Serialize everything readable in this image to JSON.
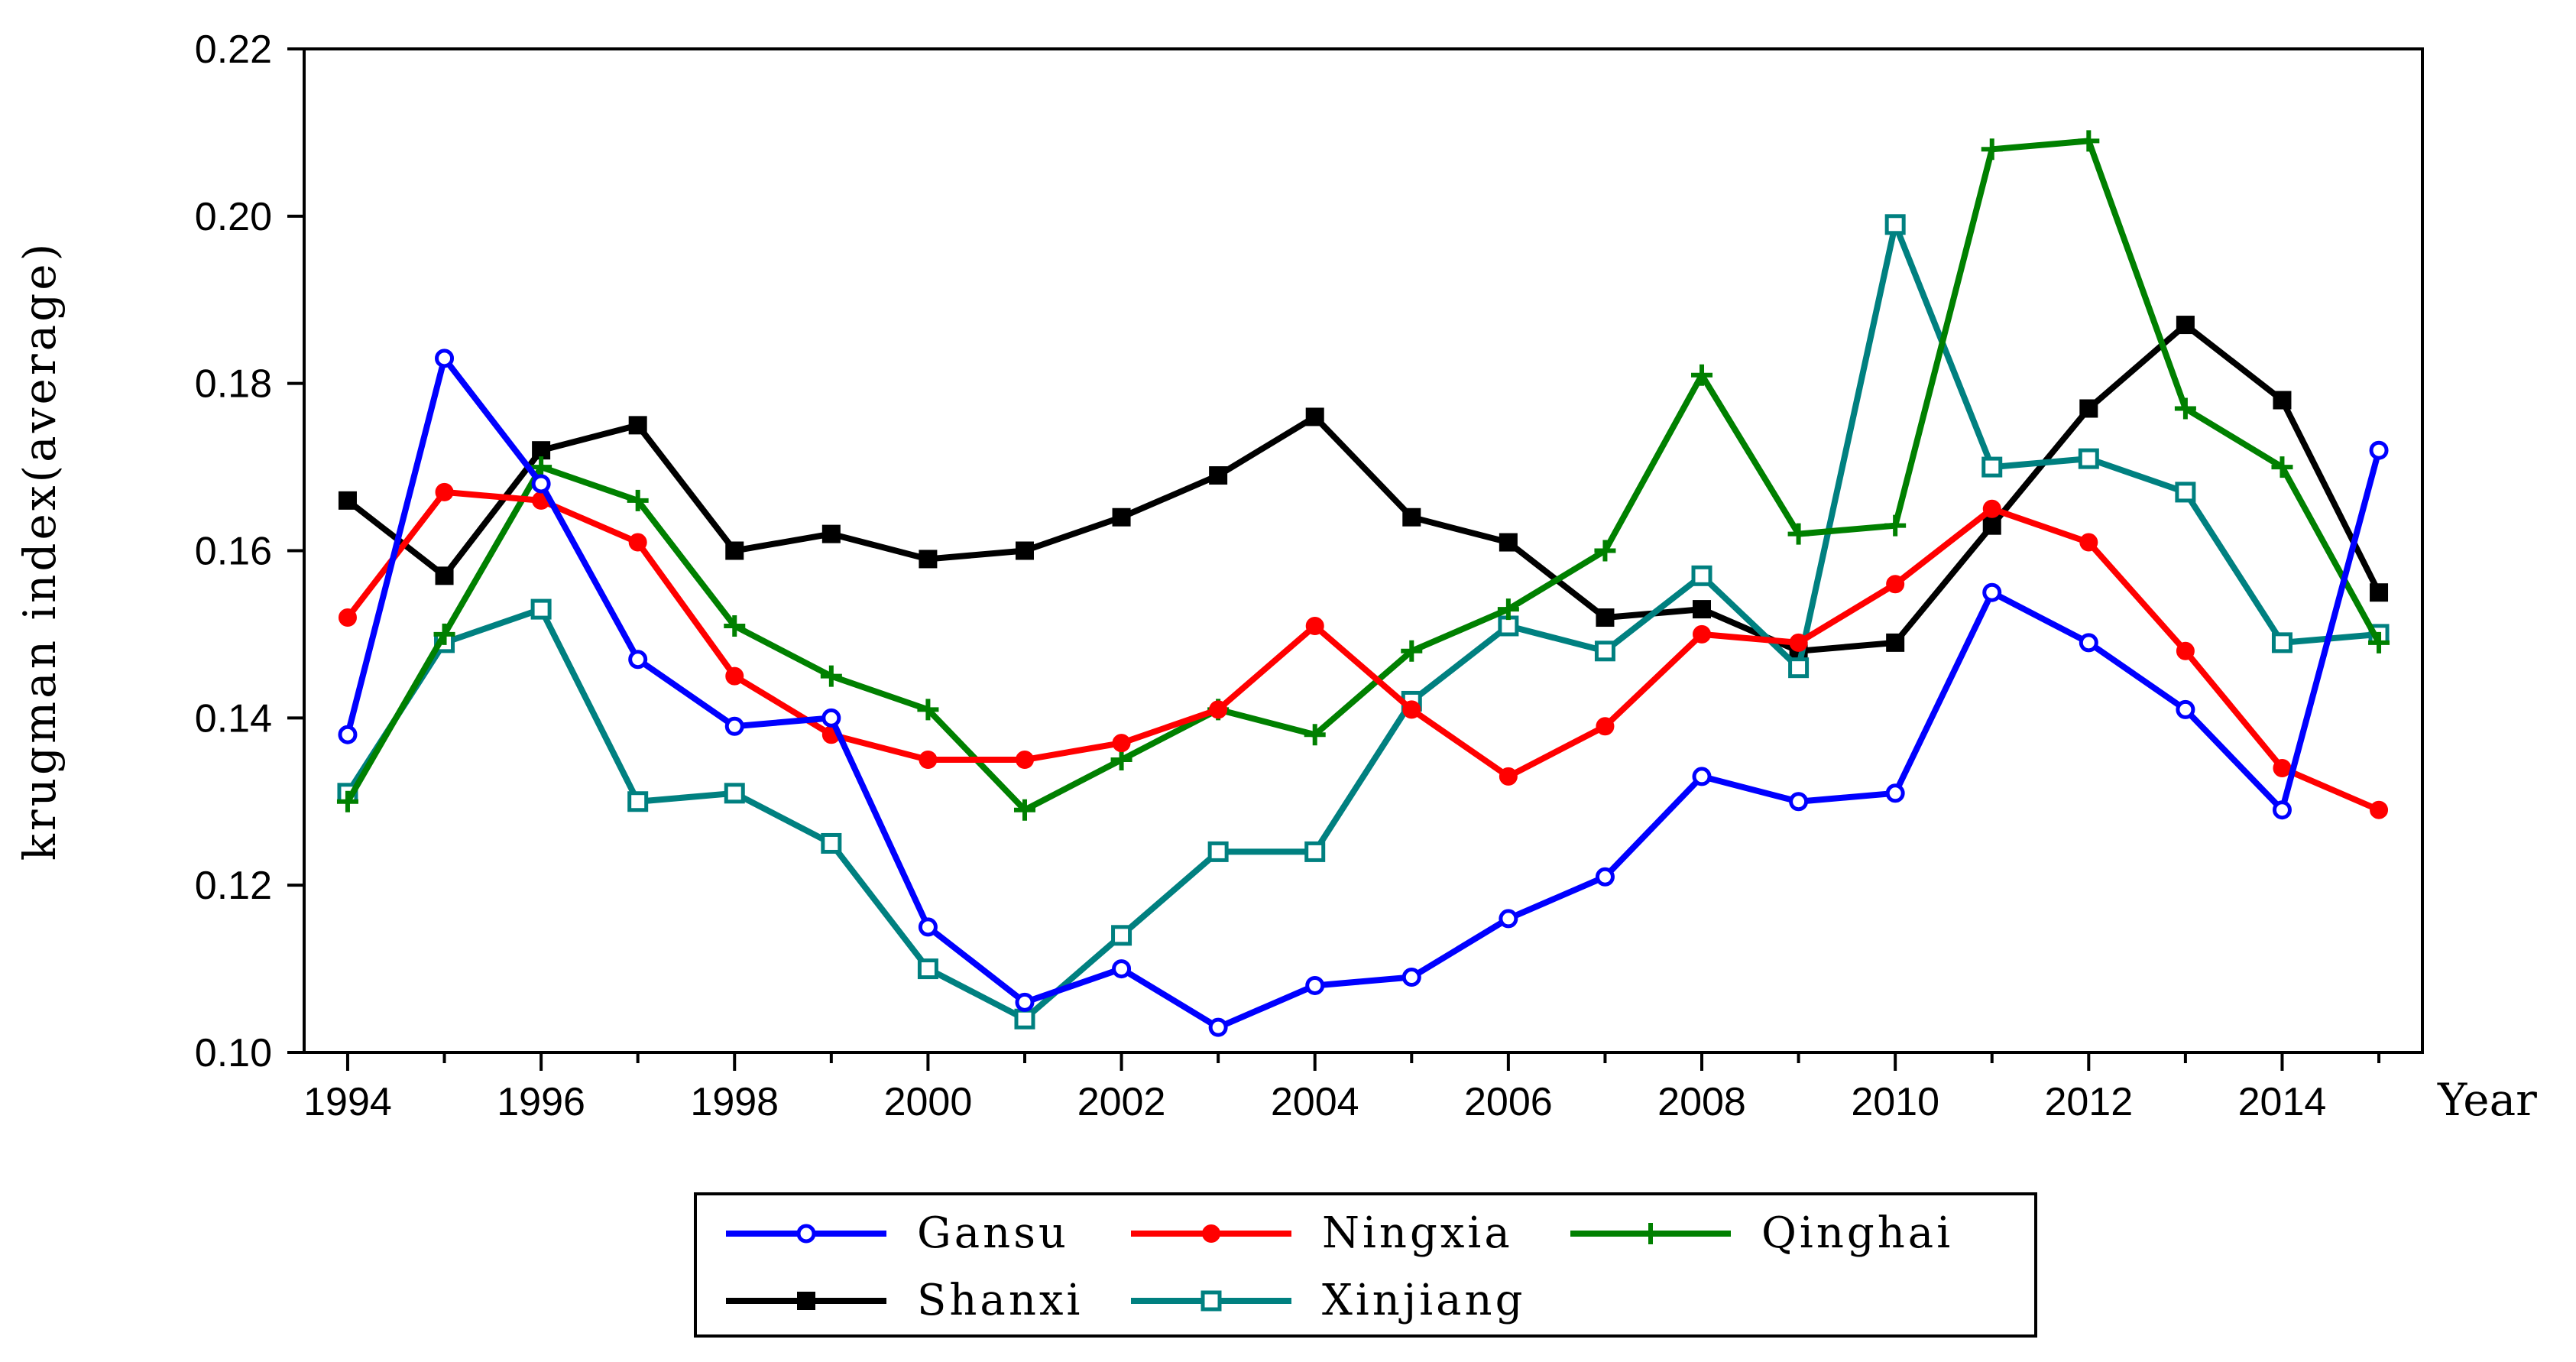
{
  "chart_data": {
    "type": "line",
    "title": "",
    "xlabel": "Year",
    "ylabel": "krugman index(average)",
    "x": [
      1994,
      1995,
      1996,
      1997,
      1998,
      1999,
      2000,
      2001,
      2002,
      2003,
      2004,
      2005,
      2006,
      2007,
      2008,
      2009,
      2010,
      2011,
      2012,
      2013,
      2014,
      2015
    ],
    "xticks": [
      1994,
      1996,
      1998,
      2000,
      2002,
      2004,
      2006,
      2008,
      2010,
      2012,
      2014
    ],
    "xtick_labels": [
      "1994",
      "1996",
      "1998",
      "2000",
      "2002",
      "2004",
      "2006",
      "2008",
      "2010",
      "2012",
      "2014"
    ],
    "yticks": [
      0.1,
      0.12,
      0.14,
      0.16,
      0.18,
      0.2,
      0.22
    ],
    "ytick_labels": [
      "0.10",
      "0.12",
      "0.14",
      "0.16",
      "0.18",
      "0.20",
      "0.22"
    ],
    "xlim": [
      1993.55,
      2015.45
    ],
    "ylim": [
      0.1,
      0.22
    ],
    "grid": false,
    "legend_position": "bottom",
    "series": [
      {
        "name": "Gansu",
        "color": "#0000ff",
        "marker": "open-circle",
        "values": [
          0.138,
          0.183,
          0.168,
          0.147,
          0.139,
          0.14,
          0.115,
          0.106,
          0.11,
          0.103,
          0.108,
          0.109,
          0.116,
          0.121,
          0.133,
          0.13,
          0.131,
          0.155,
          0.149,
          0.141,
          0.129,
          0.172
        ]
      },
      {
        "name": "Ningxia",
        "color": "#ff0000",
        "marker": "filled-circle",
        "values": [
          0.152,
          0.167,
          0.166,
          0.161,
          0.145,
          0.138,
          0.135,
          0.135,
          0.137,
          0.141,
          0.151,
          0.141,
          0.133,
          0.139,
          0.15,
          0.149,
          0.156,
          0.165,
          0.161,
          0.148,
          0.134,
          0.129
        ]
      },
      {
        "name": "Qinghai",
        "color": "#008000",
        "marker": "plus",
        "values": [
          0.13,
          0.15,
          0.17,
          0.166,
          0.151,
          0.145,
          0.141,
          0.129,
          0.135,
          0.141,
          0.138,
          0.148,
          0.153,
          0.16,
          0.181,
          0.162,
          0.163,
          0.208,
          0.209,
          0.177,
          0.17,
          0.149
        ]
      },
      {
        "name": "Shanxi",
        "color": "#000000",
        "marker": "filled-square",
        "values": [
          0.166,
          0.157,
          0.172,
          0.175,
          0.16,
          0.162,
          0.159,
          0.16,
          0.164,
          0.169,
          0.176,
          0.164,
          0.161,
          0.152,
          0.153,
          0.148,
          0.149,
          0.163,
          0.177,
          0.187,
          0.178,
          0.155
        ]
      },
      {
        "name": "Xinjiang",
        "color": "#008080",
        "marker": "open-square",
        "values": [
          0.131,
          0.149,
          0.153,
          0.13,
          0.131,
          0.125,
          0.11,
          0.104,
          0.114,
          0.124,
          0.124,
          0.142,
          0.151,
          0.148,
          0.157,
          0.146,
          0.199,
          0.17,
          0.171,
          0.167,
          0.149,
          0.15
        ]
      }
    ]
  }
}
